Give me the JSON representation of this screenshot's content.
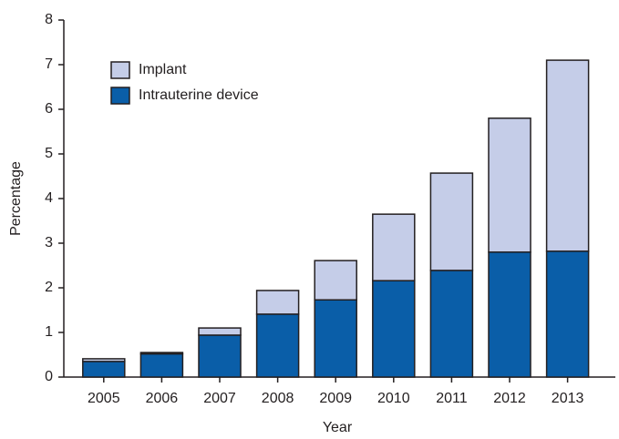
{
  "chart_data": {
    "type": "stacked_bar",
    "x_label": "Year",
    "y_label": "Percentage",
    "categories": [
      "2005",
      "2006",
      "2007",
      "2008",
      "2009",
      "2010",
      "2011",
      "2012",
      "2013"
    ],
    "series": [
      {
        "name": "Intrauterine device",
        "color": "#0a5ea8",
        "values": [
          0.35,
          0.52,
          0.94,
          1.41,
          1.73,
          2.16,
          2.39,
          2.8,
          2.82
        ]
      },
      {
        "name": "Implant",
        "color": "#c5cde8",
        "values": [
          0.06,
          0.03,
          0.16,
          0.53,
          0.88,
          1.49,
          2.18,
          3.0,
          4.28
        ]
      }
    ],
    "ylim": [
      0,
      8
    ],
    "yticks": [
      0,
      1,
      2,
      3,
      4,
      5,
      6,
      7,
      8
    ]
  }
}
